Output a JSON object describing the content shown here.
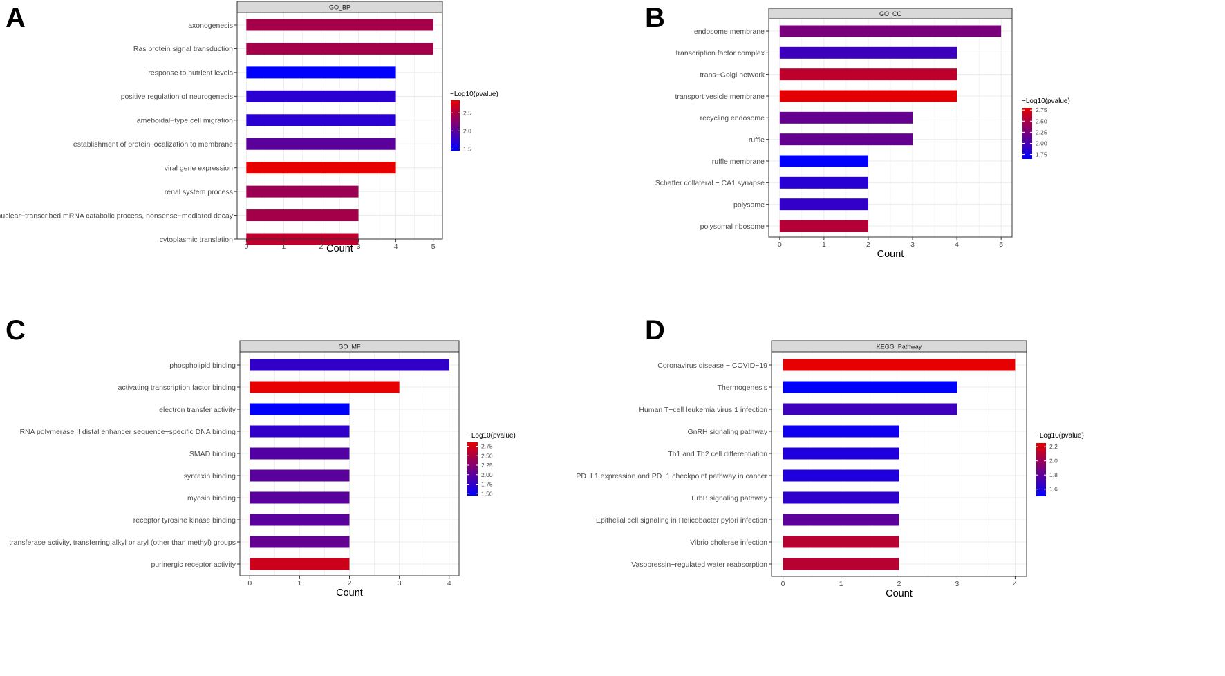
{
  "panels": [
    {
      "letter": "A"
    },
    {
      "letter": "B"
    },
    {
      "letter": "C"
    },
    {
      "letter": "D"
    }
  ],
  "chart_data": [
    {
      "type": "bar",
      "orientation": "horizontal",
      "strip_title": "GO_BP",
      "categories": [
        "axonogenesis",
        "Ras protein signal transduction",
        "response to nutrient levels",
        "positive regulation of neurogenesis",
        "ameboidal−type cell migration",
        "establishment of protein localization to membrane",
        "viral gene expression",
        "renal system process",
        "nuclear−transcribed mRNA catabolic process, nonsense−mediated decay",
        "cytoplasmic translation"
      ],
      "values": [
        5,
        5,
        4,
        4,
        4,
        4,
        4,
        3,
        3,
        3
      ],
      "color_values": [
        2.45,
        2.45,
        1.45,
        1.7,
        1.7,
        2.0,
        2.85,
        2.4,
        2.45,
        2.6
      ],
      "xlabel": "Count",
      "xlim": [
        0,
        5
      ],
      "xticks": [
        "0",
        "1",
        "2",
        "3",
        "4",
        "5"
      ],
      "legend": {
        "title": "−Log10(pvalue)",
        "min": 1.45,
        "max": 2.85,
        "ticks": [
          1.5,
          2.0,
          2.5
        ],
        "tick_labels": [
          "1.5",
          "2.0",
          "2.5"
        ]
      }
    },
    {
      "type": "bar",
      "orientation": "horizontal",
      "strip_title": "GO_CC",
      "categories": [
        "endosome membrane",
        "transcription factor complex",
        "trans−Golgi network",
        "transport vesicle membrane",
        "recycling endosome",
        "ruffle",
        "ruffle membrane",
        "Schaffer collateral − CA1 synapse",
        "polysome",
        "polysomal ribosome"
      ],
      "values": [
        5,
        4,
        4,
        4,
        3,
        3,
        2,
        2,
        2,
        2
      ],
      "color_values": [
        2.25,
        1.95,
        2.6,
        2.78,
        2.15,
        2.15,
        1.65,
        1.85,
        1.9,
        2.55
      ],
      "xlabel": "Count",
      "xlim": [
        0,
        5
      ],
      "xticks": [
        "0",
        "1",
        "2",
        "3",
        "4",
        "5"
      ],
      "legend": {
        "title": "−Log10(pvalue)",
        "min": 1.65,
        "max": 2.8,
        "ticks": [
          1.75,
          2.0,
          2.25,
          2.5,
          2.75
        ],
        "tick_labels": [
          "1.75",
          "2.00",
          "2.25",
          "2.50",
          "2.75"
        ]
      }
    },
    {
      "type": "bar",
      "orientation": "horizontal",
      "strip_title": "GO_MF",
      "categories": [
        "phospholipid binding",
        "activating transcription factor binding",
        "electron transfer activity",
        "RNA polymerase II distal enhancer sequence−specific DNA binding",
        "SMAD binding",
        "syntaxin binding",
        "myosin binding",
        "receptor tyrosine kinase binding",
        "transferase activity, transferring alkyl or aryl (other than methyl) groups",
        "purinergic receptor activity"
      ],
      "values": [
        4,
        3,
        2,
        2,
        2,
        2,
        2,
        2,
        2,
        2
      ],
      "color_values": [
        1.75,
        2.85,
        1.45,
        1.75,
        1.95,
        2.0,
        2.0,
        2.0,
        2.05,
        2.7
      ],
      "xlabel": "Count",
      "xlim": [
        0,
        4
      ],
      "xticks": [
        "0",
        "1",
        "2",
        "3",
        "4"
      ],
      "legend": {
        "title": "−Log10(pvalue)",
        "min": 1.45,
        "max": 2.85,
        "ticks": [
          1.5,
          1.75,
          2.0,
          2.25,
          2.5,
          2.75
        ],
        "tick_labels": [
          "1.50",
          "1.75",
          "2.00",
          "2.25",
          "2.50",
          "2.75"
        ]
      }
    },
    {
      "type": "bar",
      "orientation": "horizontal",
      "strip_title": "KEGG_Pathway",
      "categories": [
        "Coronavirus disease − COVID−19",
        "Thermogenesis",
        "Human T−cell leukemia virus 1 infection",
        "GnRH signaling pathway",
        "Th1 and Th2 cell differentiation",
        "PD−L1 expression and PD−1 checkpoint pathway in cancer",
        "ErbB signaling pathway",
        "Epithelial cell signaling in Helicobacter pylori infection",
        "Vibrio cholerae infection",
        "Vasopressin−regulated water reabsorption"
      ],
      "values": [
        4,
        3,
        3,
        2,
        2,
        2,
        2,
        2,
        2,
        2
      ],
      "color_values": [
        2.25,
        1.5,
        1.7,
        1.55,
        1.6,
        1.6,
        1.65,
        1.8,
        2.1,
        2.1
      ],
      "xlabel": "Count",
      "xlim": [
        0,
        4
      ],
      "xticks": [
        "0",
        "1",
        "2",
        "3",
        "4"
      ],
      "legend": {
        "title": "−Log10(pvalue)",
        "min": 1.5,
        "max": 2.25,
        "ticks": [
          1.6,
          1.8,
          2.0,
          2.2
        ],
        "tick_labels": [
          "1.6",
          "1.8",
          "2.0",
          "2.2"
        ]
      }
    }
  ],
  "colors": {
    "low": "#0000ff",
    "high": "#e60000",
    "grid": "#ebebeb",
    "strip_bg": "#d9d9d9",
    "border": "#333333",
    "axis_text": "#4d4d4d",
    "label_text": "#333333"
  }
}
